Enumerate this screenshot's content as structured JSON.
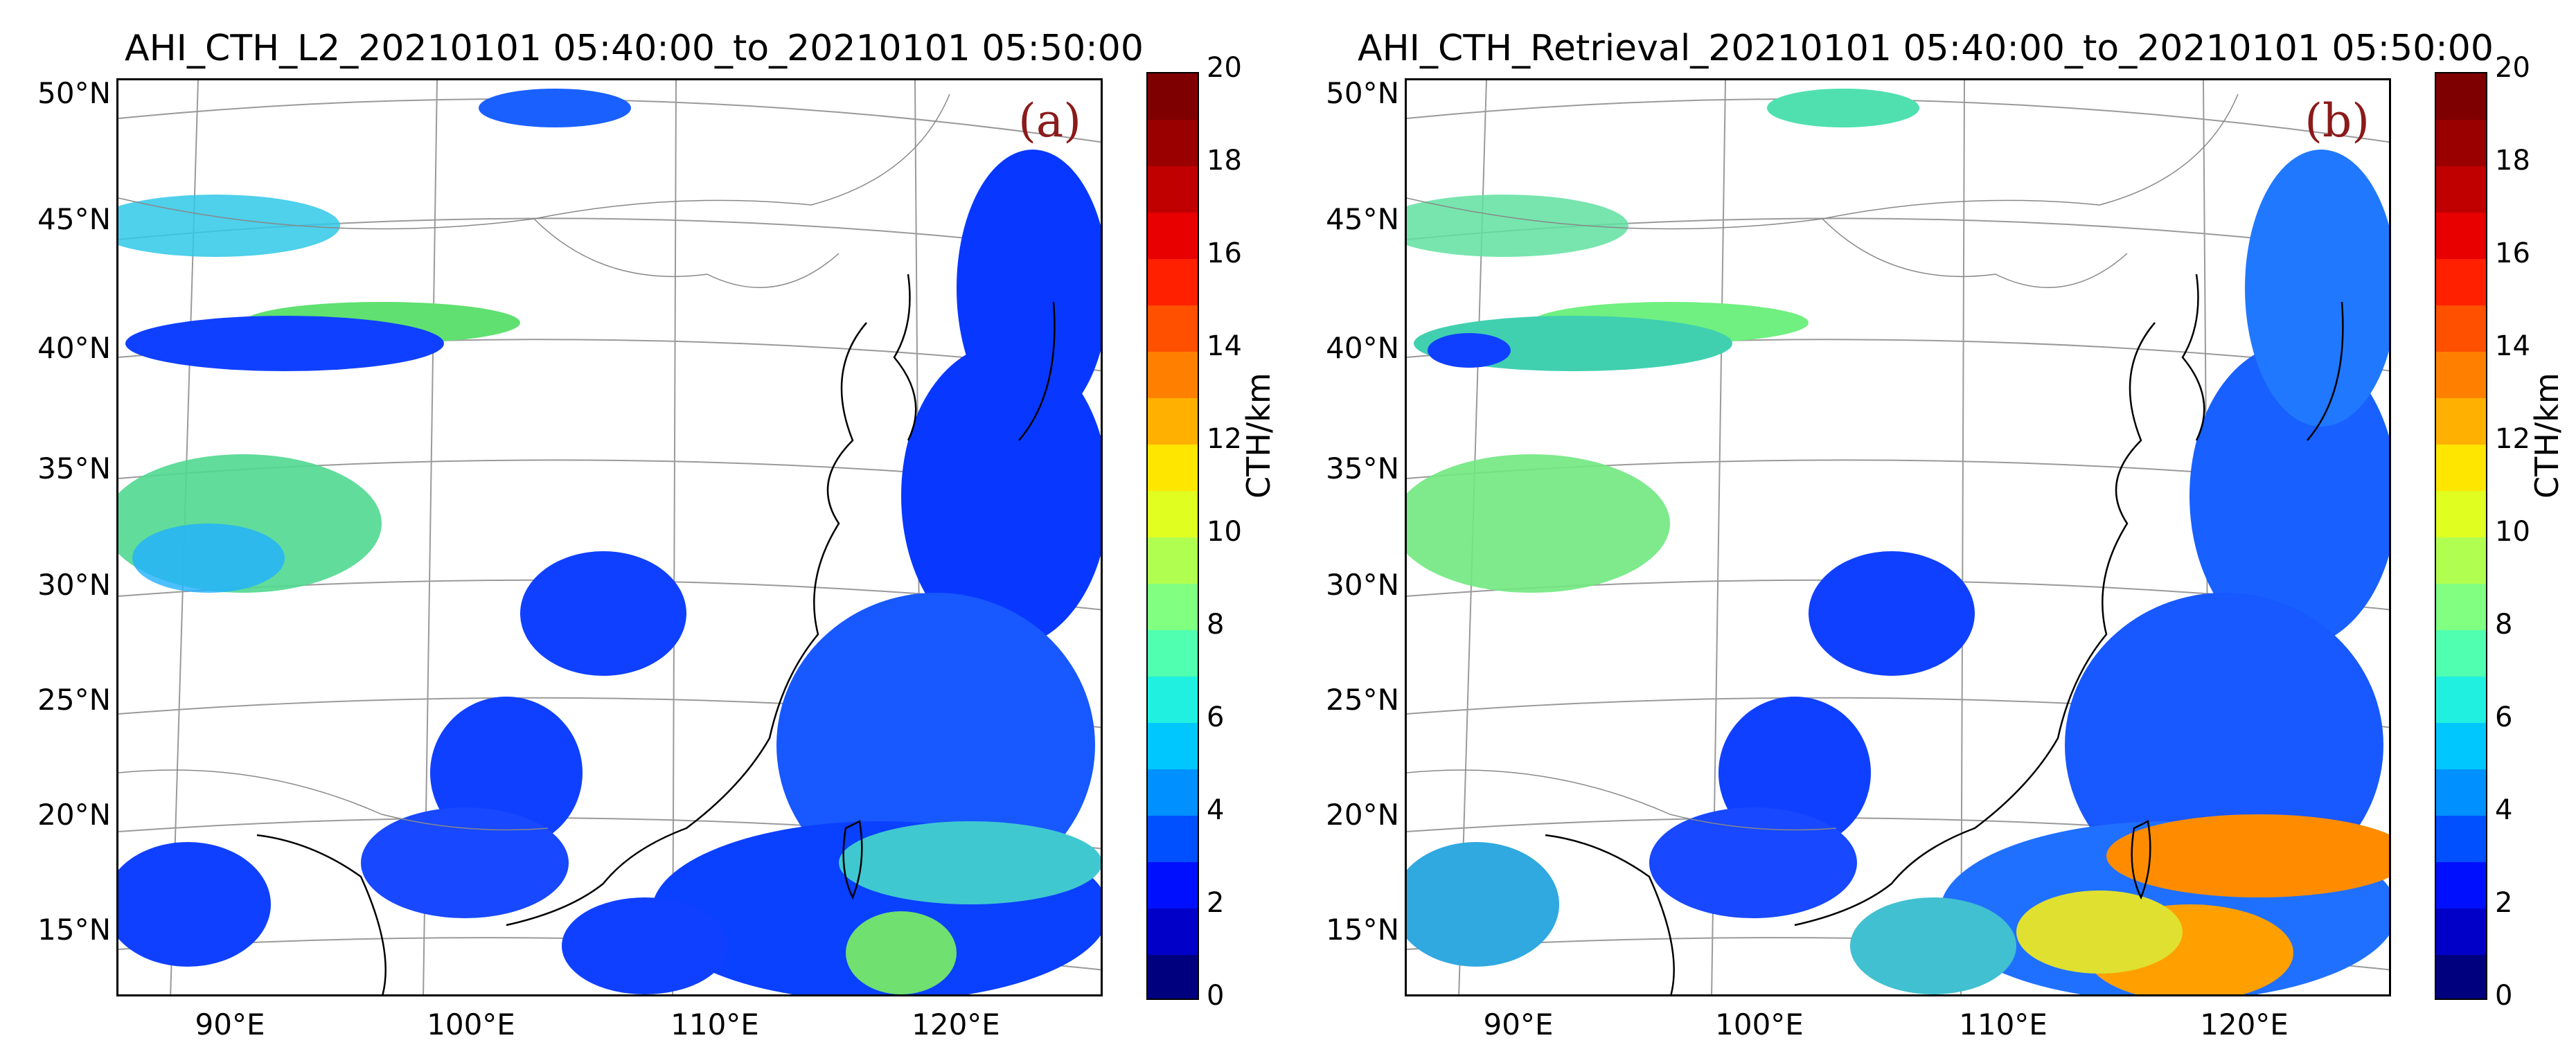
{
  "colorbar": {
    "label": "CTH/km",
    "ticks": [
      "0",
      "2",
      "4",
      "6",
      "8",
      "10",
      "12",
      "14",
      "16",
      "18",
      "20"
    ],
    "min": 0,
    "max": 20,
    "colors": [
      "#00007f",
      "#0000c8",
      "#0010ff",
      "#0050ff",
      "#0090ff",
      "#00c8ff",
      "#20f0e0",
      "#50ffb0",
      "#80ff80",
      "#b0ff50",
      "#e0ff20",
      "#ffe600",
      "#ffb000",
      "#ff8000",
      "#ff5000",
      "#ff2000",
      "#e80000",
      "#c00000",
      "#9a0000",
      "#7f0000"
    ]
  },
  "axes": {
    "lat_labels": [
      "50°N",
      "45°N",
      "40°N",
      "35°N",
      "30°N",
      "25°N",
      "20°N",
      "15°N"
    ],
    "lon_labels": [
      "90°E",
      "100°E",
      "110°E",
      "120°E"
    ]
  },
  "panels": [
    {
      "title": "AHI_CTH_L2_20210101 05:40:00_to_20210101 05:50:00",
      "label": "(a)"
    },
    {
      "title": "AHI_CTH_Retrieval_20210101 05:40:00_to_20210101 05:50:00",
      "label": "(b)"
    }
  ]
}
